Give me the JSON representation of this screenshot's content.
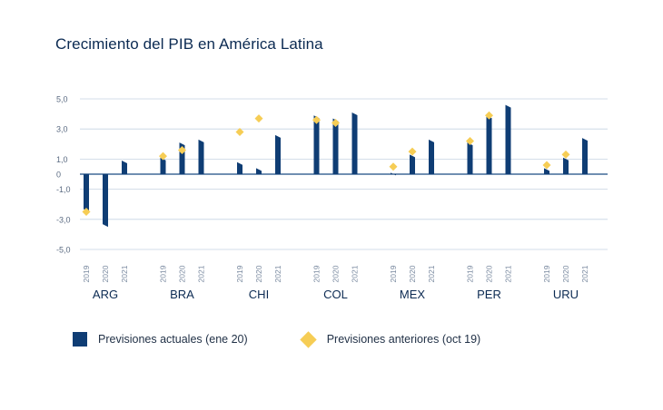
{
  "chart_data": {
    "type": "bar",
    "title": "Crecimiento del PIB en América Latina",
    "ylim": [
      -5,
      5
    ],
    "yticks": [
      "5,0",
      "3,0",
      "1,0",
      "0",
      "-1,0",
      "-3,0",
      "-5,0"
    ],
    "ytick_values": [
      5,
      3,
      1,
      0,
      -1,
      -3,
      -5
    ],
    "years": [
      "2019",
      "2020",
      "2021"
    ],
    "groups": [
      "ARG",
      "BRA",
      "CHI",
      "COL",
      "MEX",
      "PER",
      "URU"
    ],
    "series": [
      {
        "name": "Previsiones actuales (ene 20)",
        "color": "#0f3d74",
        "values": [
          [
            -2.5,
            -3.5,
            0.9
          ],
          [
            1.1,
            2.1,
            2.3
          ],
          [
            0.8,
            0.4,
            2.6
          ],
          [
            3.9,
            3.7,
            4.1
          ],
          [
            0.1,
            1.3,
            2.3
          ],
          [
            2.1,
            3.9,
            4.6
          ],
          [
            0.4,
            1.1,
            2.4
          ]
        ]
      },
      {
        "name": "Previsiones anteriores (oct 19)",
        "color": "#f6cd55",
        "values": [
          [
            -2.5,
            null,
            null
          ],
          [
            1.2,
            1.6,
            null
          ],
          [
            2.8,
            3.7,
            null
          ],
          [
            3.6,
            3.4,
            null
          ],
          [
            0.5,
            1.5,
            null
          ],
          [
            2.2,
            3.9,
            null
          ],
          [
            0.6,
            1.3,
            null
          ]
        ]
      }
    ],
    "grid": true,
    "legend_position": "bottom-left"
  }
}
